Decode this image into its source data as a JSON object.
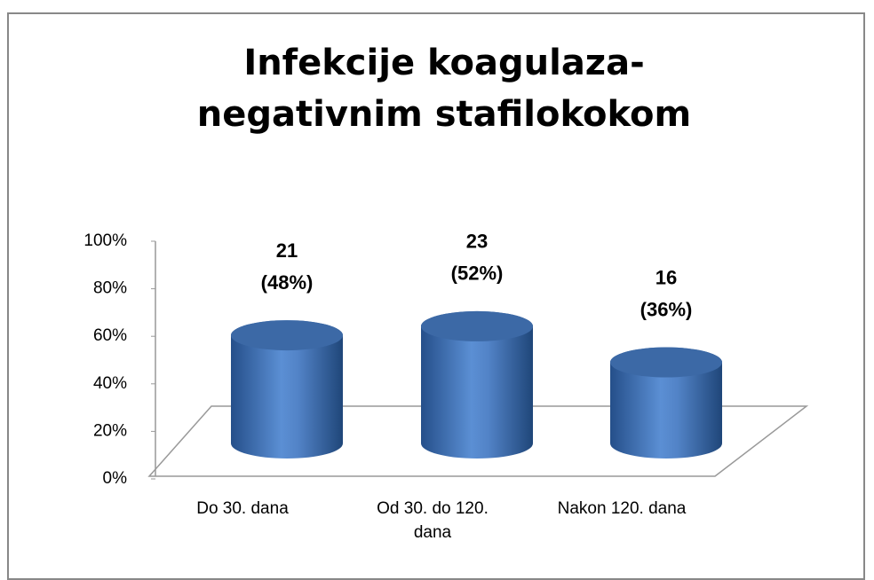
{
  "chart_data": {
    "type": "bar3d",
    "title": "Infekcije koagulaza-negativnim stafilokokom",
    "categories": [
      "Do 30. dana",
      "Od 30. do 120. dana",
      "Nakon 120. dana"
    ],
    "values": [
      48,
      52,
      36
    ],
    "value_labels": [
      [
        "21",
        "(48%)"
      ],
      [
        "23",
        "(52%)"
      ],
      [
        "16",
        "(36%)"
      ]
    ],
    "color": "#4f81bd",
    "ylim": [
      0,
      100
    ],
    "yticks": [
      {
        "value": 0,
        "label": "0%"
      },
      {
        "value": 20,
        "label": "20%"
      },
      {
        "value": 40,
        "label": "40%"
      },
      {
        "value": 60,
        "label": "60%"
      },
      {
        "value": 80,
        "label": "80%"
      },
      {
        "value": 100,
        "label": "100%"
      }
    ]
  }
}
